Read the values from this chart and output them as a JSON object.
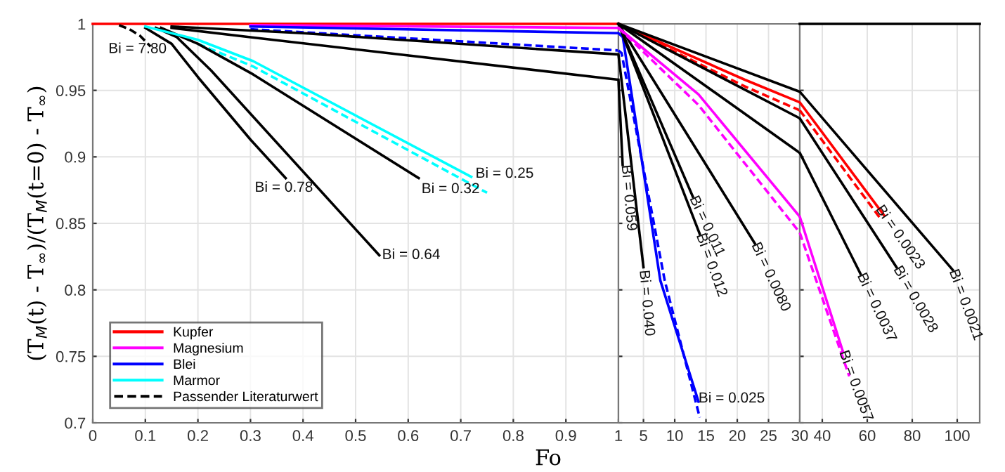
{
  "chart_data": [
    {
      "type": "line",
      "xlabel": "Fo",
      "ylabel": "(T$_{M}$(t) - T$_{∞}$)/(T$_{M}$(t=0) - T$_{∞}$)",
      "xlim": [
        0,
        1
      ],
      "ylim": [
        0.7,
        1
      ],
      "xticks": [
        0,
        0.1,
        0.2,
        0.3,
        0.4,
        0.5,
        0.6,
        0.7,
        0.8,
        0.9,
        1
      ],
      "yticks": [
        0.7,
        0.75,
        0.8,
        0.85,
        0.9,
        0.95,
        1
      ],
      "grid": true,
      "legend": "lower left",
      "series": [
        {
          "name": "Kupfer",
          "color": "#ff0000",
          "x": [
            0,
            1
          ],
          "values": [
            1,
            1
          ]
        },
        {
          "color": "#0000ff",
          "line_style": "dashed",
          "x": [
            0.3,
            1
          ],
          "values": [
            0.996,
            0.98
          ]
        },
        {
          "color": "#00ffff",
          "line_style": "dashed",
          "x": [
            0.2,
            0.305,
            0.75
          ],
          "values": [
            0.985,
            0.968,
            0.873
          ]
        },
        {
          "color": "#000000",
          "x": [
            0.1,
            0.15,
            0.2,
            0.3,
            0.367
          ],
          "values": [
            0.997,
            0.985,
            0.96,
            0.913,
            0.884
          ]
        },
        {
          "color": "#000000",
          "x": [
            0.12,
            0.16,
            0.225,
            0.545
          ],
          "values": [
            0.997,
            0.99,
            0.965,
            0.826
          ]
        },
        {
          "color": "#000000",
          "x": [
            0.13,
            0.2,
            0.305,
            0.62
          ],
          "values": [
            0.997,
            0.985,
            0.962,
            0.884
          ]
        },
        {
          "color": "#000000",
          "x": [
            0.15,
            0.3,
            1
          ],
          "values": [
            0.997,
            0.99,
            0.958
          ]
        },
        {
          "color": "#000000",
          "x": [
            0.15,
            0.4,
            1
          ],
          "values": [
            0.998,
            0.993,
            0.977
          ]
        },
        {
          "name": "Magnesium",
          "color": "#ff00ff",
          "x": [
            0.3,
            1
          ],
          "values": [
            0.999,
            0.997
          ]
        },
        {
          "name": "Blei",
          "color": "#0000ff",
          "x": [
            0.3,
            1
          ],
          "values": [
            0.998,
            0.993
          ]
        },
        {
          "name": "Marmor",
          "color": "#00ffff",
          "x": [
            0.1,
            0.2,
            0.305,
            0.72
          ],
          "values": [
            0.998,
            0.988,
            0.972,
            0.885
          ]
        },
        {
          "name": "Passender Literaturwert",
          "color": "#000000",
          "line_style": "dashed",
          "x": [
            0.05,
            0.07,
            0.09,
            0.11
          ],
          "values": [
            0.999,
            0.996,
            0.991,
            0.983
          ]
        }
      ],
      "annotations": [
        {
          "text": "Bi = 7.80",
          "x": 0.11,
          "y": 0.983
        },
        {
          "text": "Bi = 0.78",
          "x": 0.367,
          "y": 0.884
        },
        {
          "text": "Bi = 0.64",
          "x": 0.545,
          "y": 0.826
        },
        {
          "text": "Bi = 0.32",
          "x": 0.62,
          "y": 0.884
        },
        {
          "text": "Bi = 0.25",
          "x": 0.72,
          "y": 0.885
        }
      ]
    },
    {
      "type": "line",
      "xlim": [
        1,
        30
      ],
      "ylim": [
        0.7,
        1
      ],
      "xticks": [
        5,
        10,
        15,
        20,
        25,
        30
      ],
      "yticks": [
        0.7,
        0.75,
        0.8,
        0.85,
        0.9,
        0.95,
        1
      ],
      "grid": true,
      "tick_labels": "x",
      "series": [
        {
          "color": "#0000ff",
          "x": [
            1,
            1.7,
            7.7,
            13.8
          ],
          "values": [
            0.993,
            0.99,
            0.807,
            0.716
          ]
        },
        {
          "color": "#0000ff",
          "line_style": "dashed",
          "x": [
            1,
            1.5,
            8.4,
            14.0
          ],
          "values": [
            0.98,
            0.978,
            0.807,
            0.704
          ]
        },
        {
          "color": "#000000",
          "x": [
            1,
            1.67
          ],
          "values": [
            0.958,
            0.894
          ]
        },
        {
          "color": "#000000",
          "x": [
            1,
            5.0
          ],
          "values": [
            0.977,
            0.817
          ]
        },
        {
          "color": "#000000",
          "x": [
            1,
            12.9
          ],
          "values": [
            1,
            0.87
          ]
        },
        {
          "color": "#000000",
          "x": [
            1,
            14.0
          ],
          "values": [
            1,
            0.842
          ]
        },
        {
          "color": "#000000",
          "x": [
            1,
            22.8
          ],
          "values": [
            1,
            0.835
          ]
        },
        {
          "color": "#ff00ff",
          "x": [
            1,
            13.8,
            30
          ],
          "values": [
            0.997,
            0.947,
            0.855
          ]
        },
        {
          "color": "#ff00ff",
          "line_style": "dashed",
          "x": [
            1,
            13.8,
            30
          ],
          "values": [
            0.997,
            0.939,
            0.843
          ]
        },
        {
          "color": "#ff0000",
          "x": [
            1,
            21.2,
            30
          ],
          "values": [
            1,
            0.958,
            0.941
          ]
        },
        {
          "color": "#ff0000",
          "line_style": "dashed",
          "x": [
            1,
            21.2,
            30
          ],
          "values": [
            1,
            0.953,
            0.935
          ]
        },
        {
          "color": "#000000",
          "x": [
            1,
            30
          ],
          "values": [
            1,
            0.949
          ]
        },
        {
          "color": "#000000",
          "x": [
            1,
            30
          ],
          "values": [
            1,
            0.929
          ]
        },
        {
          "color": "#000000",
          "x": [
            1,
            30
          ],
          "values": [
            1,
            0.903
          ]
        }
      ],
      "annotations": [
        {
          "text": "Bi = 0.059",
          "x": 1.67,
          "y": 0.894
        },
        {
          "text": "Bi = 0.040",
          "x": 5.0,
          "y": 0.817
        },
        {
          "text": "Bi = 0.011",
          "x": 12.9,
          "y": 0.87
        },
        {
          "text": "Bi = 0.012",
          "x": 14.0,
          "y": 0.842
        },
        {
          "text": "Bi = 0.0080",
          "x": 22.8,
          "y": 0.835
        },
        {
          "text": "Bi = 0.025",
          "x": 13.8,
          "y": 0.716
        }
      ]
    },
    {
      "type": "line",
      "xlim": [
        30,
        110
      ],
      "ylim": [
        0.7,
        1
      ],
      "xticks": [
        40,
        60,
        80,
        100
      ],
      "yticks": [
        0.7,
        0.75,
        0.8,
        0.85,
        0.9,
        0.95,
        1
      ],
      "grid": true,
      "tick_labels": "x",
      "series": [
        {
          "color": "#ff00ff",
          "x": [
            30,
            49.1
          ],
          "values": [
            0.855,
            0.754
          ]
        },
        {
          "color": "#ff00ff",
          "line_style": "dashed",
          "x": [
            30,
            52
          ],
          "values": [
            0.843,
            0.735
          ]
        },
        {
          "color": "#ff0000",
          "x": [
            30,
            67.5
          ],
          "values": [
            0.941,
            0.856
          ]
        },
        {
          "color": "#ff0000",
          "line_style": "dashed",
          "x": [
            30,
            65.7
          ],
          "values": [
            0.935,
            0.854
          ]
        },
        {
          "color": "#000000",
          "x": [
            30,
            98
          ],
          "values": [
            0.949,
            0.815
          ]
        },
        {
          "color": "#000000",
          "x": [
            30,
            73
          ],
          "values": [
            0.929,
            0.817
          ]
        },
        {
          "color": "#000000",
          "x": [
            30,
            57
          ],
          "values": [
            0.903,
            0.812
          ]
        },
        {
          "color": "#000000",
          "x": [
            30,
            110
          ],
          "values": [
            1,
            1
          ]
        }
      ],
      "annotations": [
        {
          "text": "Bi = 0.0023",
          "x": 67.5,
          "y": 0.856
        },
        {
          "text": "Bi = 0.0021",
          "x": 98,
          "y": 0.815
        },
        {
          "text": "Bi = 0.0028",
          "x": 73,
          "y": 0.817
        },
        {
          "text": "Bi = 0.0037",
          "x": 57,
          "y": 0.812
        },
        {
          "text": "Bi = 0.0057",
          "x": 49.1,
          "y": 0.754
        }
      ]
    }
  ]
}
